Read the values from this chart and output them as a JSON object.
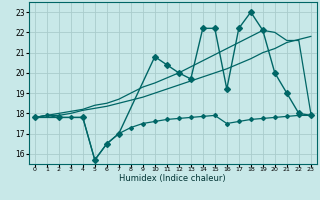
{
  "xlabel": "Humidex (Indice chaleur)",
  "x_ticks": [
    0,
    1,
    2,
    3,
    4,
    5,
    6,
    7,
    8,
    9,
    10,
    11,
    12,
    13,
    14,
    15,
    16,
    17,
    18,
    19,
    20,
    21,
    22,
    23
  ],
  "y_ticks": [
    16,
    17,
    18,
    19,
    20,
    21,
    22,
    23
  ],
  "xlim": [
    -0.5,
    23.5
  ],
  "ylim": [
    15.5,
    23.5
  ],
  "bg_color": "#c8e8e8",
  "grid_color": "#aacccc",
  "line_color": "#006666",
  "series": [
    {
      "x": [
        0,
        1,
        2,
        3,
        4,
        5,
        6,
        7,
        8,
        9,
        10,
        11,
        12,
        13,
        14,
        15,
        16,
        17,
        18,
        19,
        20,
        21,
        22,
        23
      ],
      "y": [
        17.8,
        17.9,
        17.8,
        17.8,
        17.8,
        15.7,
        16.5,
        17.0,
        17.3,
        17.5,
        17.6,
        17.7,
        17.75,
        17.8,
        17.85,
        17.9,
        17.5,
        17.6,
        17.7,
        17.75,
        17.8,
        17.85,
        17.9,
        17.9
      ],
      "marker": "D",
      "markersize": 2.0,
      "lw": 0.9
    },
    {
      "x": [
        0,
        1,
        2,
        3,
        4,
        5,
        6,
        7,
        8,
        9,
        10,
        11,
        12,
        13,
        14,
        15,
        16,
        17,
        18,
        19,
        20,
        21,
        22,
        23
      ],
      "y": [
        17.8,
        17.9,
        17.9,
        18.0,
        18.15,
        18.25,
        18.35,
        18.5,
        18.65,
        18.8,
        19.0,
        19.2,
        19.4,
        19.6,
        19.8,
        20.0,
        20.2,
        20.45,
        20.7,
        21.0,
        21.2,
        21.5,
        21.65,
        21.8
      ],
      "marker": null,
      "markersize": 0,
      "lw": 0.9
    },
    {
      "x": [
        0,
        1,
        2,
        3,
        4,
        5,
        6,
        7,
        8,
        9,
        10,
        11,
        12,
        13,
        14,
        15,
        16,
        17,
        18,
        19,
        20,
        21,
        22,
        23
      ],
      "y": [
        17.8,
        17.9,
        18.0,
        18.1,
        18.2,
        18.4,
        18.5,
        18.7,
        19.0,
        19.3,
        19.5,
        19.75,
        20.0,
        20.3,
        20.6,
        20.9,
        21.2,
        21.5,
        21.8,
        22.1,
        22.0,
        21.6,
        21.6,
        18.0
      ],
      "marker": null,
      "markersize": 0,
      "lw": 0.9
    },
    {
      "x": [
        0,
        2,
        4,
        5,
        6,
        7,
        10,
        11,
        12,
        13,
        14,
        15,
        16,
        17,
        18,
        19,
        20,
        21,
        22,
        23
      ],
      "y": [
        17.8,
        17.8,
        17.8,
        15.7,
        16.5,
        17.0,
        20.8,
        20.4,
        20.0,
        19.7,
        22.2,
        22.2,
        19.2,
        22.2,
        23.0,
        22.1,
        20.0,
        19.0,
        18.0,
        17.9
      ],
      "marker": "D",
      "markersize": 3.0,
      "lw": 1.0
    }
  ]
}
